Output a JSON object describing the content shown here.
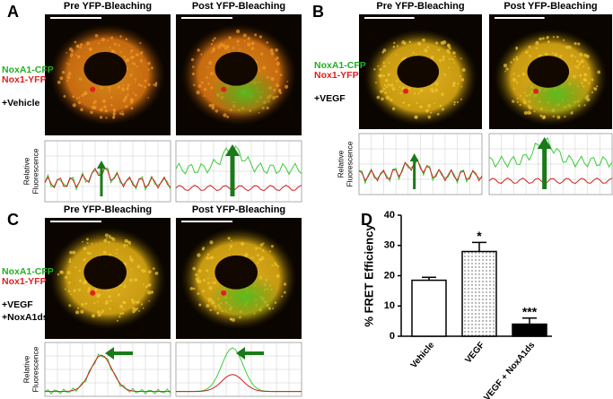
{
  "panels": [
    {
      "label": "A",
      "pre_title": "Pre YFP-Bleaching",
      "post_title": "Post YFP-Bleaching",
      "legend": [
        "NoxA1-CFP",
        "Nox1-YFP"
      ],
      "condition": [
        "+Vehicle"
      ],
      "y_label": [
        "Relative",
        "Fluorescence"
      ]
    },
    {
      "label": "B",
      "pre_title": "Pre YFP-Bleaching",
      "post_title": "Post YFP-Bleaching",
      "legend": [
        "NoxA1-CFP",
        "Nox1-YFP"
      ],
      "condition": [
        "+VEGF"
      ],
      "y_label": [
        "Relative",
        "Fluorescence"
      ]
    },
    {
      "label": "C",
      "pre_title": "Pre YFP-Bleaching",
      "post_title": "Post YFP-Bleaching",
      "legend": [
        "NoxA1-CFP",
        "Nox1-YFP"
      ],
      "condition": [
        "+VEGF",
        "+NoxA1ds"
      ],
      "y_label": [
        "Relative",
        "Fluorescence"
      ]
    }
  ],
  "chart_data": {
    "type": "bar",
    "label": "D",
    "y_label": "% FRET Efficiency",
    "categories": [
      "Vehicle",
      "VEGF",
      "VEGF + NoxA1ds"
    ],
    "values": [
      18.5,
      28,
      4
    ],
    "errors": [
      1,
      3,
      2
    ],
    "colors": [
      "#ffffff",
      "#d9d9d9",
      "#000000"
    ],
    "ylim": [
      0,
      40
    ],
    "yticks": [
      0,
      10,
      20,
      30,
      40
    ],
    "annotations": [
      {
        "text": "*",
        "x": "VEGF"
      },
      {
        "text": "***",
        "x": "VEGF + NoxA1ds"
      }
    ]
  }
}
